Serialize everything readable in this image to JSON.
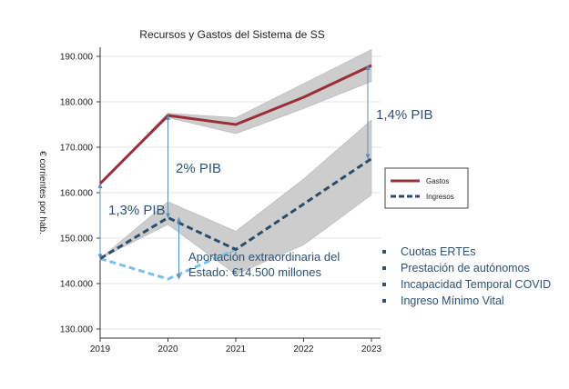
{
  "chart_data": {
    "type": "line",
    "title": "Recursos y Gastos del Sistema de SS",
    "ylabel": "€ corrientes por hab.",
    "xlabel": "",
    "x": [
      "2019",
      "2020",
      "2021",
      "2022",
      "2023"
    ],
    "ylim": [
      128000,
      192000
    ],
    "yticks": [
      130000,
      140000,
      150000,
      160000,
      170000,
      180000,
      190000
    ],
    "ytick_labels": [
      "130.000",
      "140.000",
      "150.000",
      "160.000",
      "170.000",
      "180.000",
      "190.000"
    ],
    "series": [
      {
        "name": "Gastos",
        "style": "solid",
        "color": "#9b2f37",
        "values": [
          162000,
          177000,
          175000,
          181000,
          188000
        ],
        "band_upper": [
          162000,
          177500,
          176500,
          184000,
          191500
        ],
        "band_lower": [
          162000,
          176500,
          173000,
          178500,
          184500
        ]
      },
      {
        "name": "Ingresos",
        "style": "dashed",
        "color": "#2a4d6b",
        "values": [
          145500,
          154500,
          147500,
          157500,
          167500
        ],
        "band_upper": [
          145500,
          158000,
          151500,
          163000,
          176000
        ],
        "band_lower": [
          145500,
          153000,
          142000,
          148500,
          159500
        ]
      },
      {
        "name": "Aportación extraordinaria",
        "style": "dashed",
        "color": "#7bbfe6",
        "x": [
          "2019",
          "2020",
          "2021"
        ],
        "values": [
          145500,
          141000,
          147500
        ]
      }
    ],
    "annotations": [
      {
        "text": "1,3% PIB",
        "x": "2019",
        "from": 145500,
        "to": 162000
      },
      {
        "text": "2% PIB",
        "x": "2020",
        "from": 154500,
        "to": 177000
      },
      {
        "text": "1,4% PIB",
        "x": "2023",
        "from": 167500,
        "to": 188000
      },
      {
        "text": "Aportación extraordinaria del Estado: €14.500 millones",
        "x": "2020",
        "from": 141000,
        "to": 154500
      }
    ],
    "legend": {
      "position": "right",
      "entries": [
        "Gastos",
        "Ingresos"
      ]
    }
  },
  "labels": {
    "pib_2019": "1,3% PIB",
    "pib_2020": "2% PIB",
    "pib_2023": "1,4% PIB",
    "aportacion_line1": "Aportación extraordinaria del",
    "aportacion_line2": "Estado: €14.500 millones"
  },
  "bullets": [
    "Cuotas ERTEs",
    "Prestación de autónomos",
    "Incapacidad Temporal COVID",
    "Ingreso Mínimo Vital"
  ],
  "colors": {
    "gastos": "#9b2f37",
    "ingresos": "#2a4d6b",
    "aportacion": "#7bbfe6",
    "band": "#c8c8c8",
    "annotation": "#2e5275",
    "arrow": "#5b8fb8"
  }
}
